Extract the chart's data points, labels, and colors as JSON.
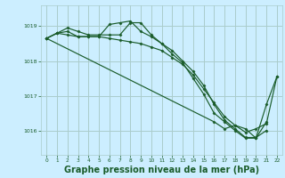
{
  "background_color": "#cceeff",
  "grid_color": "#aacccc",
  "line_color": "#1a5c2a",
  "marker_color": "#1a5c2a",
  "xlabel": "Graphe pression niveau de la mer (hPa)",
  "xlabel_fontsize": 7,
  "ylabel_ticks": [
    1016,
    1017,
    1018,
    1019
  ],
  "xlim": [
    -0.5,
    22.5
  ],
  "ylim": [
    1015.3,
    1019.6
  ],
  "series": [
    {
      "x": [
        0,
        1,
        2,
        3,
        4,
        5,
        6,
        7,
        8,
        9,
        10,
        11,
        12,
        13,
        14,
        15,
        16,
        17,
        18,
        19,
        20,
        21,
        22
      ],
      "y": [
        1018.65,
        1018.8,
        1018.75,
        1018.7,
        1018.7,
        1018.7,
        1018.65,
        1018.6,
        1018.55,
        1018.5,
        1018.4,
        1018.3,
        1018.1,
        1017.9,
        1017.6,
        1017.2,
        1016.8,
        1016.4,
        1016.15,
        1015.95,
        1016.05,
        1016.2,
        1017.55
      ]
    },
    {
      "x": [
        0,
        1,
        2,
        3,
        4,
        5,
        6,
        7,
        8,
        9,
        10,
        11,
        12,
        13,
        14,
        15,
        16,
        17,
        18,
        19,
        20,
        21
      ],
      "y": [
        1018.65,
        1018.8,
        1018.85,
        1018.7,
        1018.7,
        1018.7,
        1019.05,
        1019.1,
        1019.15,
        1018.85,
        1018.7,
        1018.5,
        1018.3,
        1018.0,
        1017.7,
        1017.3,
        1016.75,
        1016.3,
        1016.05,
        1015.8,
        1015.8,
        1016.0
      ]
    },
    {
      "x": [
        0,
        1,
        2,
        3,
        4,
        5,
        6,
        7,
        8,
        9,
        10,
        11,
        12,
        13,
        14,
        15,
        16,
        17,
        18,
        19,
        20,
        21
      ],
      "y": [
        1018.65,
        1018.8,
        1018.95,
        1018.85,
        1018.75,
        1018.75,
        1018.75,
        1018.75,
        1019.1,
        1019.1,
        1018.75,
        1018.5,
        1018.2,
        1017.95,
        1017.5,
        1017.05,
        1016.5,
        1016.25,
        1016.0,
        1015.78,
        1015.78,
        1016.25
      ]
    },
    {
      "x": [
        0,
        16,
        17,
        18,
        19,
        20,
        21,
        22
      ],
      "y": [
        1018.65,
        1016.25,
        1016.05,
        1016.15,
        1016.05,
        1015.78,
        1016.75,
        1017.55
      ]
    }
  ]
}
